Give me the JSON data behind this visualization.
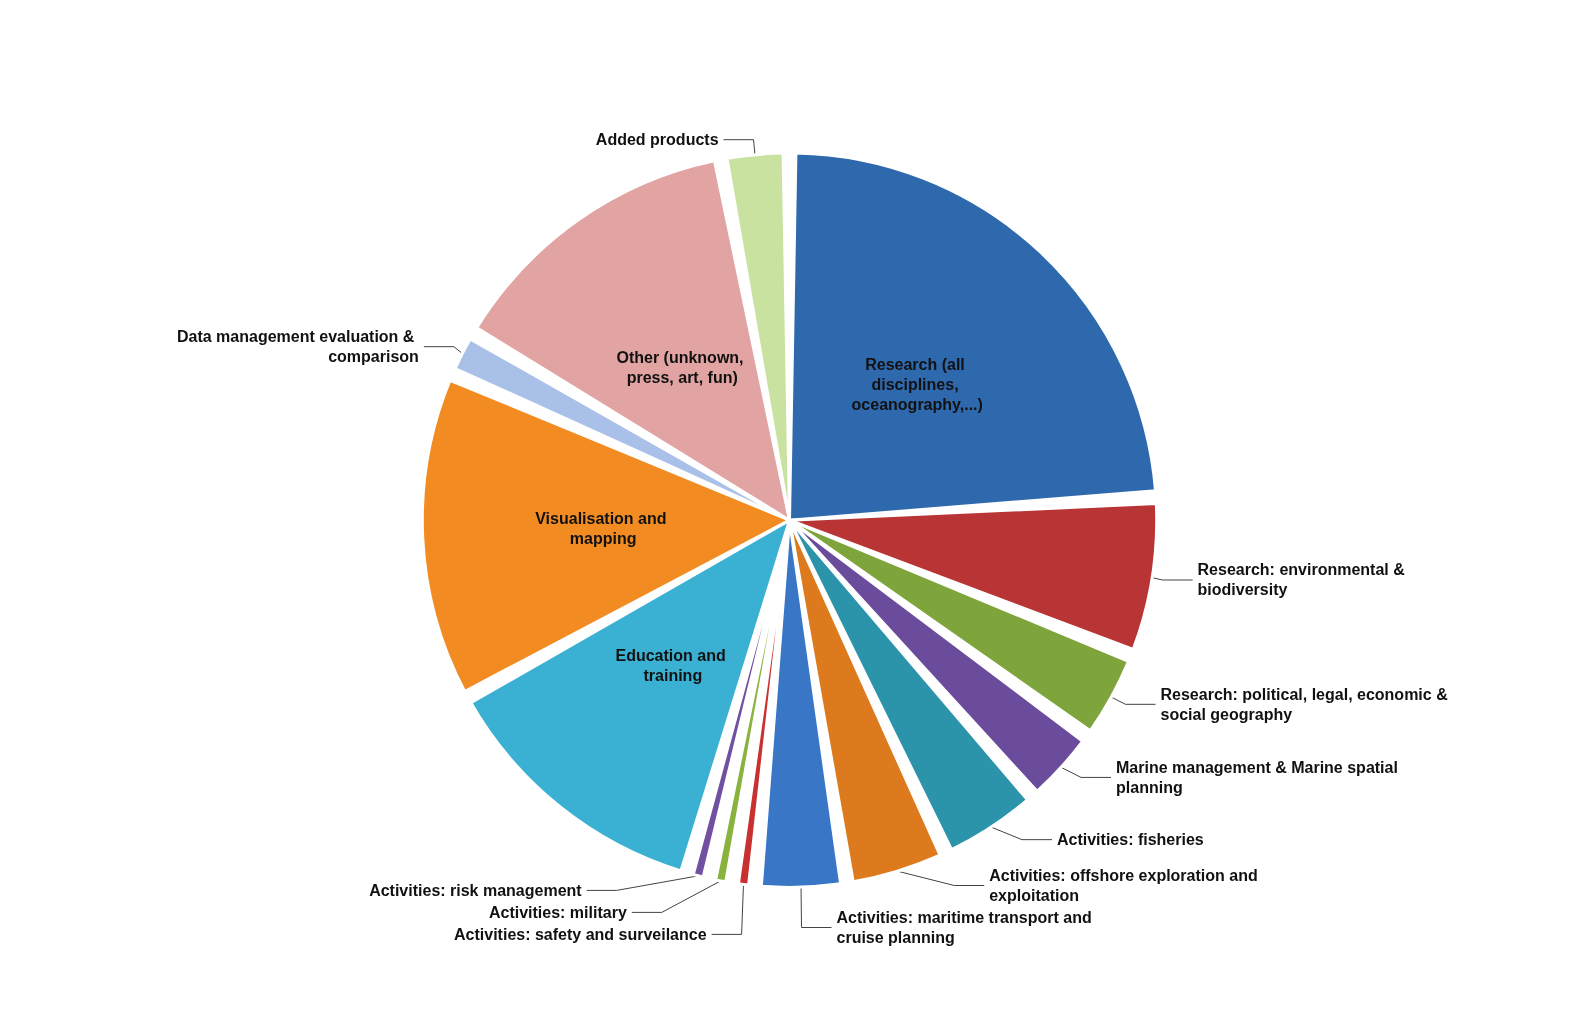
{
  "chart_data": {
    "type": "pie",
    "categories": [
      "Research (all disciplines, oceanography,...)",
      "Research: environmental & biodiversity",
      "Research: political, legal, economic & social geography",
      "Marine management & Marine spatial planning",
      "Activities: fisheries",
      "Activities: offshore exploration and exploitation",
      "Activities: maritime transport and cruise planning",
      "Activities: safety and surveilance",
      "Activities: military",
      "Activities: risk management",
      "Education and training",
      "Visualisation and mapping",
      "Data management evaluation & comparison",
      "Other (unknown, press, art, fun)",
      "Added products"
    ],
    "values": [
      24,
      7,
      4,
      3.5,
      4.5,
      4.5,
      4,
      1,
      1,
      1,
      12.5,
      14.5,
      2,
      13.5,
      3
    ],
    "colors": [
      "#2f69ad",
      "#b93434",
      "#7ea53b",
      "#6b4b9b",
      "#2b93aa",
      "#de7a1e",
      "#3977c6",
      "#c93131",
      "#8ab23f",
      "#7050a1",
      "#3ab1d2",
      "#f28c22",
      "#a9c1e8",
      "#e2a3a3",
      "#c9e2a0"
    ],
    "legend": false
  }
}
